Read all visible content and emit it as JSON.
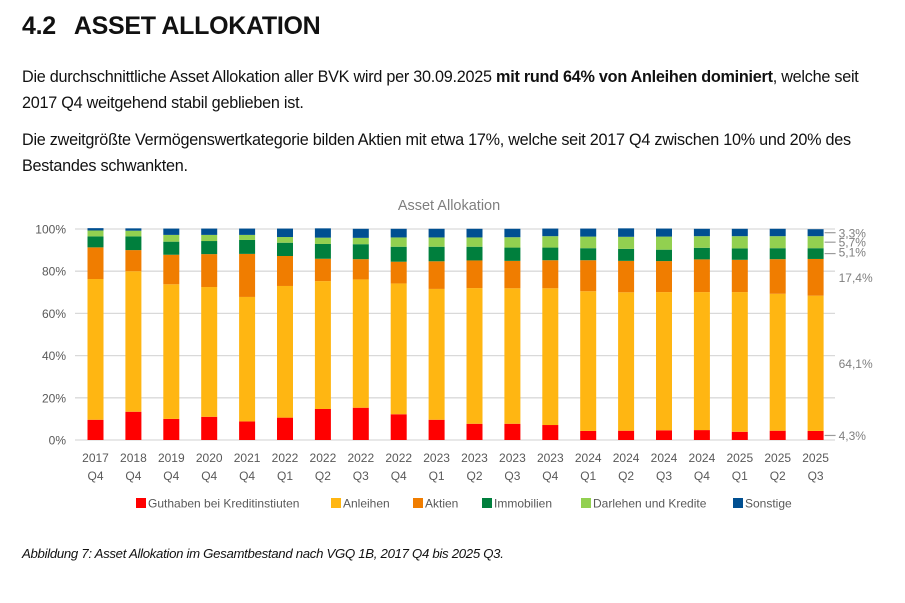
{
  "section": {
    "number": "4.2",
    "title": "ASSET ALLOKATION"
  },
  "paragraphs": {
    "p1": {
      "pre": "Die durchschnittliche Asset Allokation aller BVK wird per 30.09.2025 ",
      "bold": "mit rund 64% von Anleihen dominiert",
      "post": ", welche seit 2017 Q4 weitgehend stabil geblieben ist."
    },
    "p2": {
      "text": "Die zweitgrößte Vermögenswertkategorie bilden Aktien mit etwa 17%, welche seit 2017 Q4 zwischen 10% und 20% des Bestandes schwankten."
    }
  },
  "caption": "Abbildung 7: Asset Allokation im Gesamtbestand nach VGQ 1B, 2017 Q4 bis 2025 Q3.",
  "chart_data": {
    "type": "bar",
    "stacked": true,
    "title": "Asset Allokation",
    "xlabel": "",
    "ylabel": "",
    "ylim": [
      0,
      100
    ],
    "yticks": [
      "0%",
      "20%",
      "40%",
      "60%",
      "80%",
      "100%"
    ],
    "grid": true,
    "legend_position": "bottom",
    "categories": [
      [
        "2017",
        "Q4"
      ],
      [
        "2018",
        "Q4"
      ],
      [
        "2019",
        "Q4"
      ],
      [
        "2020",
        "Q4"
      ],
      [
        "2021",
        "Q4"
      ],
      [
        "2022",
        "Q1"
      ],
      [
        "2022",
        "Q2"
      ],
      [
        "2022",
        "Q3"
      ],
      [
        "2022",
        "Q4"
      ],
      [
        "2023",
        "Q1"
      ],
      [
        "2023",
        "Q2"
      ],
      [
        "2023",
        "Q3"
      ],
      [
        "2023",
        "Q4"
      ],
      [
        "2024",
        "Q1"
      ],
      [
        "2024",
        "Q2"
      ],
      [
        "2024",
        "Q3"
      ],
      [
        "2024",
        "Q4"
      ],
      [
        "2025",
        "Q1"
      ],
      [
        "2025",
        "Q2"
      ],
      [
        "2025",
        "Q3"
      ]
    ],
    "series": [
      {
        "name": "Guthaben bei Kreditinstiuten",
        "color": "#ff0000",
        "values": [
          9.6,
          13.4,
          10.0,
          11.0,
          8.8,
          10.6,
          14.7,
          15.3,
          12.2,
          9.6,
          7.7,
          7.7,
          7.1,
          4.3,
          4.4,
          4.6,
          4.7,
          3.9,
          4.4,
          4.3
        ]
      },
      {
        "name": "Anleihen",
        "color": "#ffb612",
        "values": [
          66.7,
          66.6,
          63.8,
          61.5,
          59.0,
          62.4,
          60.6,
          60.8,
          62.0,
          62.0,
          64.3,
          64.2,
          64.8,
          66.2,
          65.6,
          65.5,
          65.4,
          66.2,
          64.9,
          64.1
        ]
      },
      {
        "name": "Aktien",
        "color": "#f07d00",
        "values": [
          15.0,
          10.0,
          14.0,
          15.6,
          20.4,
          14.2,
          10.6,
          9.6,
          10.3,
          13.1,
          13.1,
          13.0,
          13.3,
          14.7,
          14.9,
          14.7,
          15.5,
          15.3,
          16.4,
          17.4
        ]
      },
      {
        "name": "Immobilien",
        "color": "#007f3d",
        "values": [
          5.2,
          6.5,
          6.2,
          6.2,
          6.6,
          6.3,
          7.0,
          7.1,
          7.1,
          6.9,
          6.5,
          6.3,
          6.0,
          5.7,
          5.7,
          5.4,
          5.5,
          5.4,
          5.2,
          5.1
        ]
      },
      {
        "name": "Darlehen und Kredite",
        "color": "#92d050",
        "values": [
          2.8,
          2.7,
          3.2,
          2.9,
          2.4,
          2.7,
          3.0,
          3.0,
          4.4,
          4.4,
          4.4,
          4.9,
          5.4,
          5.5,
          5.7,
          6.2,
          5.5,
          5.8,
          5.7,
          5.7
        ]
      },
      {
        "name": "Sonstige",
        "color": "#004f91",
        "values": [
          1.1,
          1.1,
          3.0,
          3.0,
          3.0,
          4.0,
          4.4,
          4.3,
          4.1,
          4.1,
          4.1,
          4.0,
          3.6,
          3.8,
          4.0,
          3.8,
          3.5,
          3.5,
          3.5,
          3.3
        ]
      }
    ],
    "end_labels": [
      {
        "series": "Sonstige",
        "label": "3,3%"
      },
      {
        "series": "Darlehen und Kredite",
        "label": "5,7%"
      },
      {
        "series": "Immobilien",
        "label": "5,1%"
      },
      {
        "series": "Aktien",
        "label": "17,4%"
      },
      {
        "series": "Anleihen",
        "label": "64,1%"
      },
      {
        "series": "Guthaben bei Kreditinstiuten",
        "label": "4,3%"
      }
    ]
  }
}
